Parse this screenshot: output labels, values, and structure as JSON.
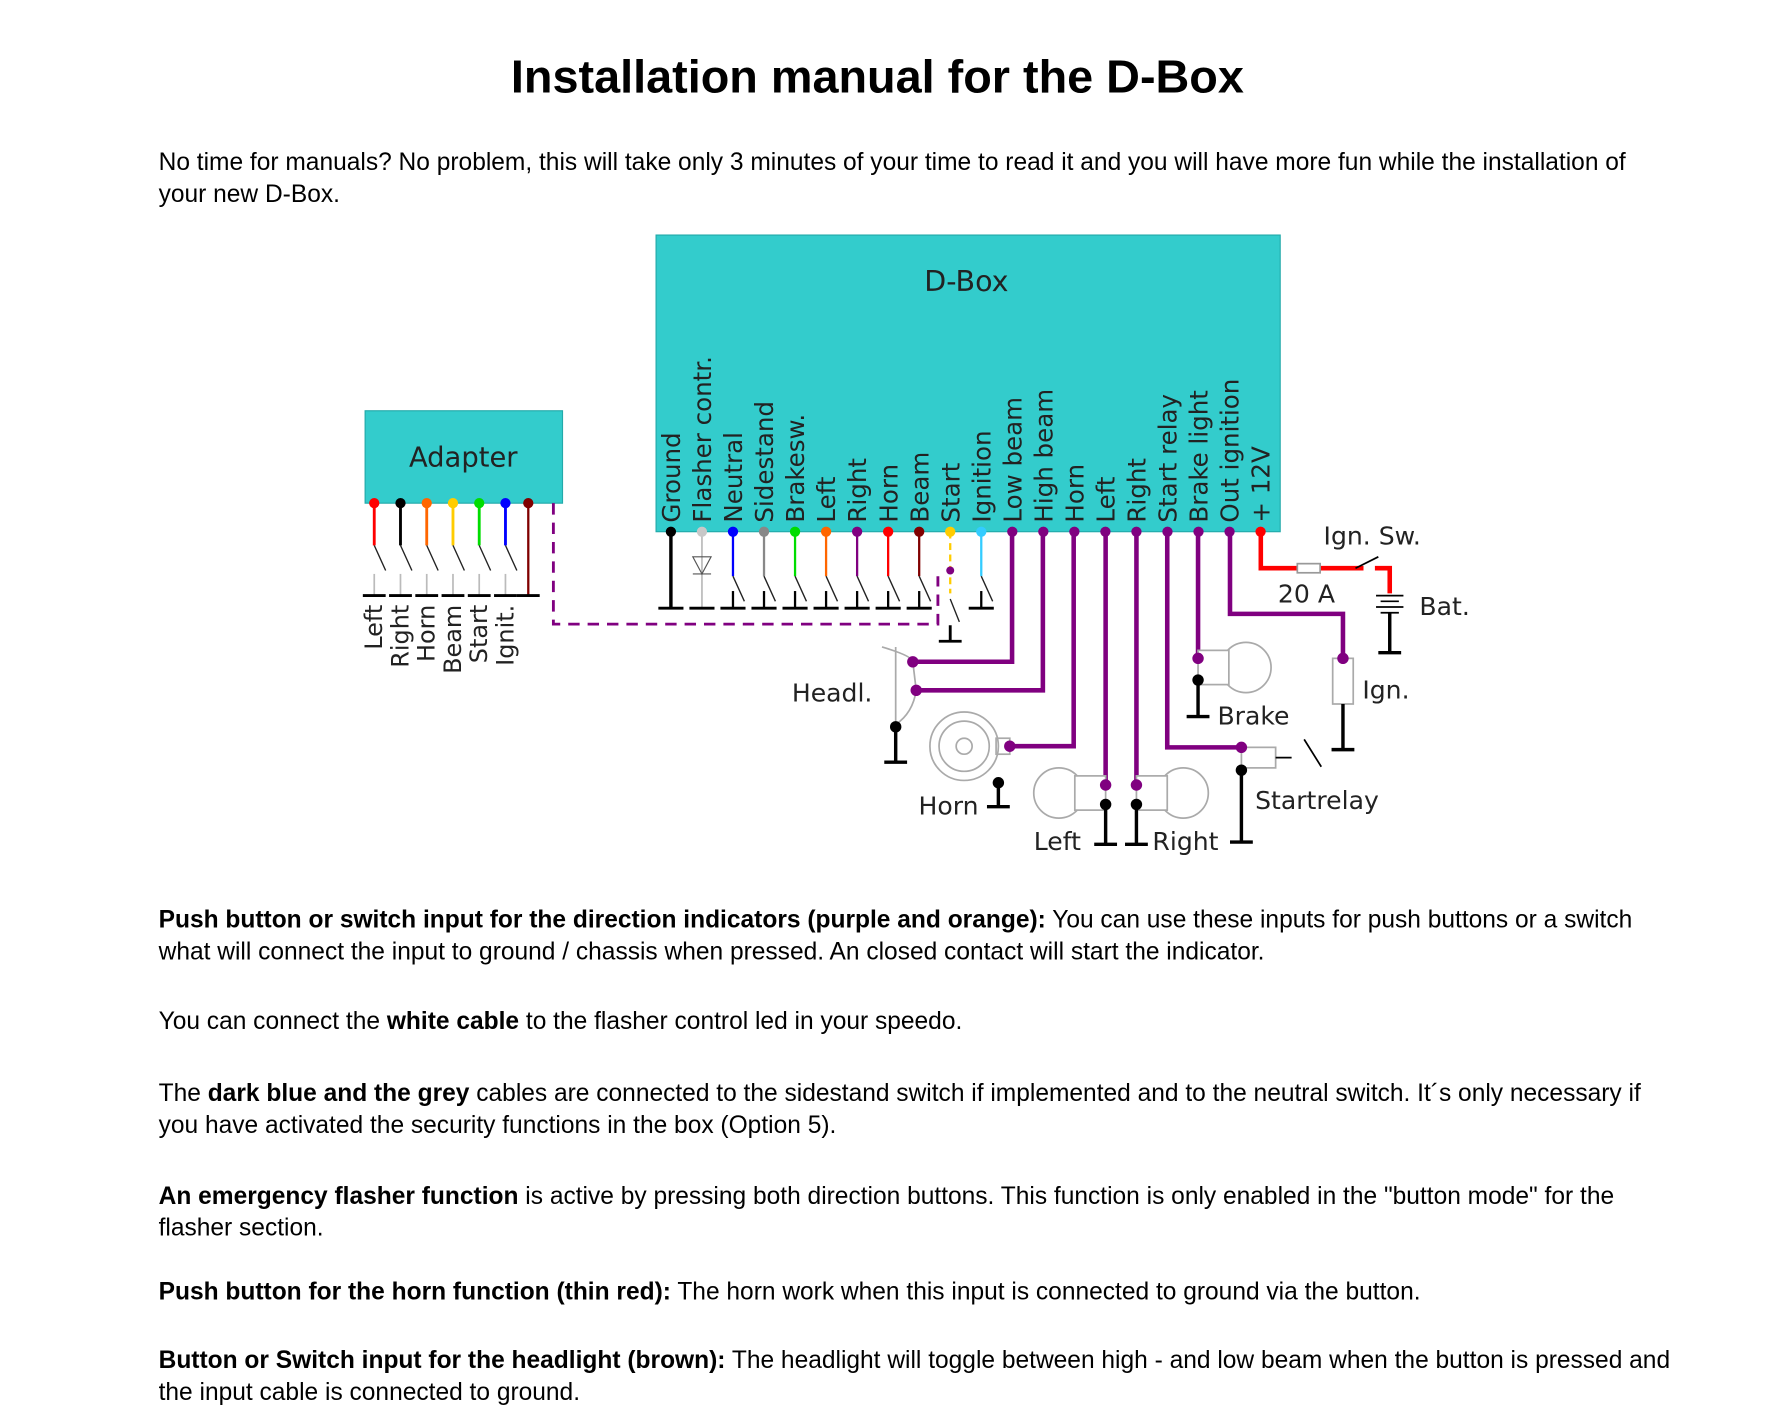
{
  "title": "Installation manual for the D-Box",
  "intro": "No time for manuals? No problem, this will take only 3 minutes of your time to read it and you will have more fun while the installation of your new D-Box.",
  "diagram": {
    "box_color": "#33CCCC",
    "wire_color": "#800080",
    "dbox_label": "D-Box",
    "adapter_label": "Adapter",
    "adapter_pins": [
      {
        "label": "Left",
        "color": "#ff0000"
      },
      {
        "label": "Right",
        "color": "#000000"
      },
      {
        "label": "Horn",
        "color": "#ff6600"
      },
      {
        "label": "Beam",
        "color": "#ffcc00"
      },
      {
        "label": "Start",
        "color": "#00dd00"
      },
      {
        "label": "Ignit.",
        "color": "#0000ff"
      },
      {
        "label": "",
        "color": "#800000"
      }
    ],
    "dbox_pins": [
      {
        "label": "Ground",
        "color": "#000000"
      },
      {
        "label": "Flasher contr.",
        "color": "#c8c8c8"
      },
      {
        "label": "Neutral",
        "color": "#0000ff"
      },
      {
        "label": "Sidestand",
        "color": "#888888"
      },
      {
        "label": "Brakesw.",
        "color": "#00dd00"
      },
      {
        "label": "Left",
        "color": "#ff6600"
      },
      {
        "label": "Right",
        "color": "#800080"
      },
      {
        "label": "Horn",
        "color": "#ff0000"
      },
      {
        "label": "Beam",
        "color": "#800000"
      },
      {
        "label": "Start",
        "color": "#ffcc00"
      },
      {
        "label": "Ignition",
        "color": "#33ccff"
      },
      {
        "label": "Low beam",
        "color": "#800080"
      },
      {
        "label": "High beam",
        "color": "#800080"
      },
      {
        "label": "Horn",
        "color": "#800080"
      },
      {
        "label": "Left",
        "color": "#800080"
      },
      {
        "label": "Right",
        "color": "#800080"
      },
      {
        "label": "Start relay",
        "color": "#800080"
      },
      {
        "label": "Brake light",
        "color": "#800080"
      },
      {
        "label": "Out ignition",
        "color": "#800080"
      },
      {
        "label": "+ 12V",
        "color": "#ff0000"
      }
    ],
    "labels": {
      "ign_sw": "Ign. Sw.",
      "fuse": "20 A",
      "bat": "Bat.",
      "ign": "Ign.",
      "headl": "Headl.",
      "brake": "Brake",
      "horn": "Horn",
      "startrelay": "Startrelay",
      "left": "Left",
      "right": "Right"
    }
  },
  "paragraphs": [
    {
      "bold": "Push button or switch input for the direction indicators (purple and orange):",
      "text": " You can use these inputs for push buttons or a switch what will connect the input to ground / chassis when pressed. An closed contact will start the indicator."
    },
    {
      "pre": "You can connect the ",
      "bold": "white cable",
      "text": " to the flasher control led in your speedo."
    },
    {
      "pre": "The ",
      "bold": "dark blue and the grey",
      "text": " cables are connected to the sidestand switch if implemented and to the neutral switch. It´s only necessary if you have activated the security functions in the box (Option 5)."
    },
    {
      "bold": "An emergency flasher function",
      "text": " is active by pressing both direction buttons. This function is only enabled in the \"button mode\" for the flasher section."
    },
    {
      "bold": "Push button for the horn function (thin red):",
      "text": " The horn work when this input is connected to ground via the button."
    },
    {
      "bold": "Button or Switch input for the headlight (brown):",
      "text": " The headlight will toggle between high - and low beam when the button is pressed and the input cable is connected to ground."
    }
  ]
}
